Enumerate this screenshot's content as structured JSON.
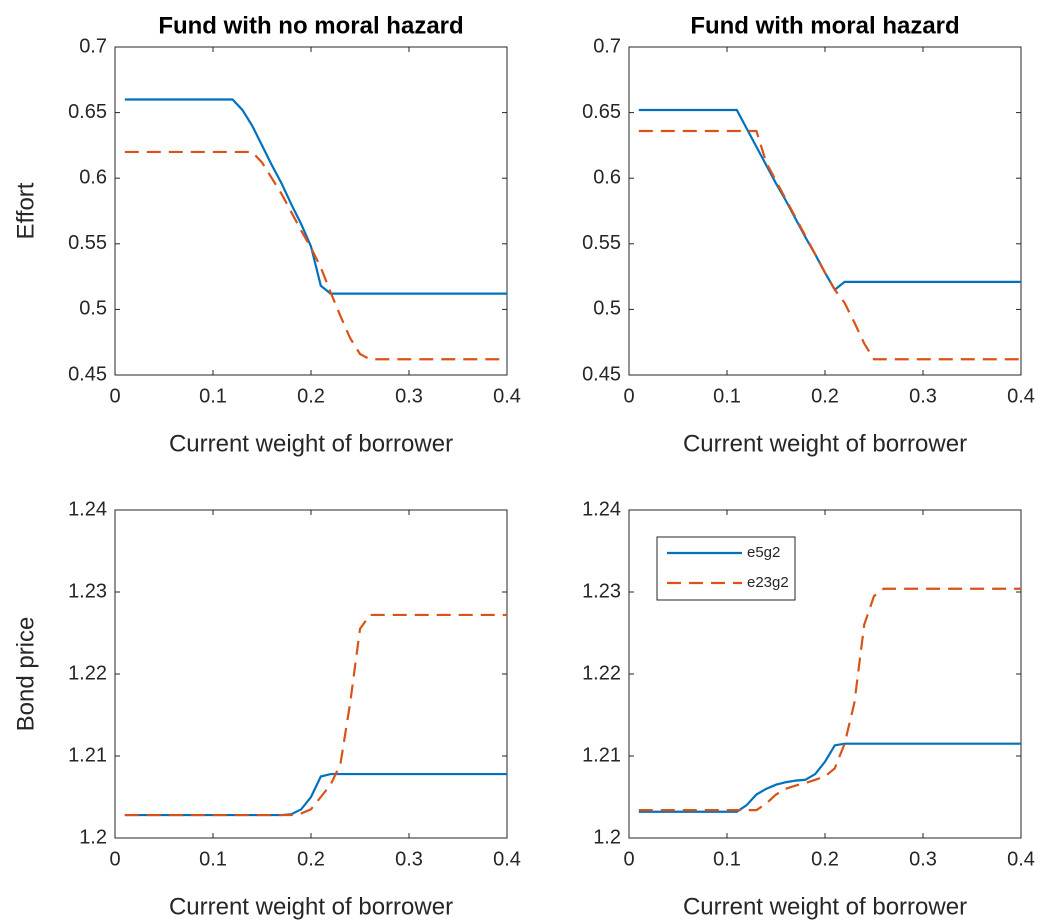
{
  "chart_data": [
    {
      "type": "line",
      "title": "Fund with no moral hazard",
      "xlabel": "Current weight of borrower",
      "ylabel": "Effort",
      "x": [
        0.01,
        0.11,
        0.12,
        0.13,
        0.14,
        0.15,
        0.16,
        0.17,
        0.18,
        0.19,
        0.2,
        0.21,
        0.22,
        0.23,
        0.24,
        0.25,
        0.26,
        0.4
      ],
      "series": [
        {
          "color": "#0072bd",
          "linestyle": "solid",
          "values": [
            0.66,
            0.66,
            0.66,
            0.652,
            0.64,
            0.625,
            0.61,
            0.596,
            0.58,
            0.565,
            0.548,
            0.518,
            0.512,
            0.512,
            0.512,
            0.512,
            0.512,
            0.512
          ]
        },
        {
          "color": "#d95319",
          "linestyle": "dashed",
          "values": [
            0.62,
            0.62,
            0.62,
            0.62,
            0.62,
            0.612,
            0.6,
            0.588,
            0.574,
            0.56,
            0.547,
            0.532,
            0.513,
            0.495,
            0.478,
            0.466,
            0.462,
            0.462
          ]
        }
      ],
      "xlim": [
        0,
        0.4
      ],
      "xticks": [
        0,
        0.1,
        0.2,
        0.3,
        0.4
      ],
      "ylim": [
        0.45,
        0.7
      ],
      "yticks": [
        0.45,
        0.5,
        0.55,
        0.6,
        0.65,
        0.7
      ]
    },
    {
      "type": "line",
      "title": "Fund with moral hazard",
      "xlabel": "Current weight of borrower",
      "x": [
        0.01,
        0.11,
        0.12,
        0.13,
        0.14,
        0.15,
        0.16,
        0.17,
        0.18,
        0.19,
        0.2,
        0.21,
        0.22,
        0.23,
        0.24,
        0.25,
        0.26,
        0.4
      ],
      "series": [
        {
          "color": "#0072bd",
          "linestyle": "solid",
          "values": [
            0.652,
            0.652,
            0.638,
            0.624,
            0.61,
            0.596,
            0.583,
            0.569,
            0.555,
            0.542,
            0.528,
            0.515,
            0.521,
            0.521,
            0.521,
            0.521,
            0.521,
            0.521
          ]
        },
        {
          "color": "#d95319",
          "linestyle": "dashed",
          "values": [
            0.636,
            0.636,
            0.636,
            0.636,
            0.612,
            0.598,
            0.584,
            0.57,
            0.556,
            0.542,
            0.528,
            0.515,
            0.505,
            0.49,
            0.474,
            0.462,
            0.462,
            0.462
          ]
        }
      ],
      "xlim": [
        0,
        0.4
      ],
      "xticks": [
        0,
        0.1,
        0.2,
        0.3,
        0.4
      ],
      "ylim": [
        0.45,
        0.7
      ],
      "yticks": [
        0.45,
        0.5,
        0.55,
        0.6,
        0.65,
        0.7
      ]
    },
    {
      "type": "line",
      "xlabel": "Current weight of borrower",
      "ylabel": "Bond price",
      "x": [
        0.01,
        0.11,
        0.12,
        0.13,
        0.14,
        0.15,
        0.16,
        0.17,
        0.18,
        0.19,
        0.2,
        0.21,
        0.22,
        0.23,
        0.24,
        0.25,
        0.26,
        0.4
      ],
      "series": [
        {
          "color": "#0072bd",
          "linestyle": "solid",
          "values": [
            1.2028,
            1.2028,
            1.2028,
            1.2028,
            1.2028,
            1.2028,
            1.2028,
            1.2028,
            1.2029,
            1.2035,
            1.205,
            1.2075,
            1.2078,
            1.2078,
            1.2078,
            1.2078,
            1.2078,
            1.2078
          ]
        },
        {
          "color": "#d95319",
          "linestyle": "dashed",
          "values": [
            1.2028,
            1.2028,
            1.2028,
            1.2028,
            1.2028,
            1.2028,
            1.2028,
            1.2028,
            1.2028,
            1.203,
            1.2035,
            1.205,
            1.2065,
            1.209,
            1.2165,
            1.2255,
            1.2272,
            1.2272
          ]
        }
      ],
      "xlim": [
        0,
        0.4
      ],
      "xticks": [
        0,
        0.1,
        0.2,
        0.3,
        0.4
      ],
      "ylim": [
        1.2,
        1.24
      ],
      "yticks": [
        1.2,
        1.21,
        1.22,
        1.23,
        1.24
      ]
    },
    {
      "type": "line",
      "xlabel": "Current weight of borrower",
      "legend": "upper left",
      "x": [
        0.01,
        0.11,
        0.12,
        0.13,
        0.14,
        0.15,
        0.16,
        0.17,
        0.18,
        0.19,
        0.2,
        0.21,
        0.22,
        0.23,
        0.24,
        0.25,
        0.26,
        0.4
      ],
      "series": [
        {
          "name": "e5g2",
          "color": "#0072bd",
          "linestyle": "solid",
          "values": [
            1.2032,
            1.2032,
            1.204,
            1.2053,
            1.206,
            1.2065,
            1.2068,
            1.207,
            1.2071,
            1.2078,
            1.2093,
            1.2113,
            1.2115,
            1.2115,
            1.2115,
            1.2115,
            1.2115,
            1.2115
          ]
        },
        {
          "name": "e23g2",
          "color": "#d95319",
          "linestyle": "dashed",
          "values": [
            1.2034,
            1.2034,
            1.2034,
            1.2034,
            1.2042,
            1.2053,
            1.206,
            1.2064,
            1.2067,
            1.2071,
            1.2075,
            1.2085,
            1.2115,
            1.2165,
            1.226,
            1.2295,
            1.2304,
            1.2304
          ]
        }
      ],
      "xlim": [
        0,
        0.4
      ],
      "xticks": [
        0,
        0.1,
        0.2,
        0.3,
        0.4
      ],
      "ylim": [
        1.2,
        1.24
      ],
      "yticks": [
        1.2,
        1.21,
        1.22,
        1.23,
        1.24
      ]
    }
  ]
}
